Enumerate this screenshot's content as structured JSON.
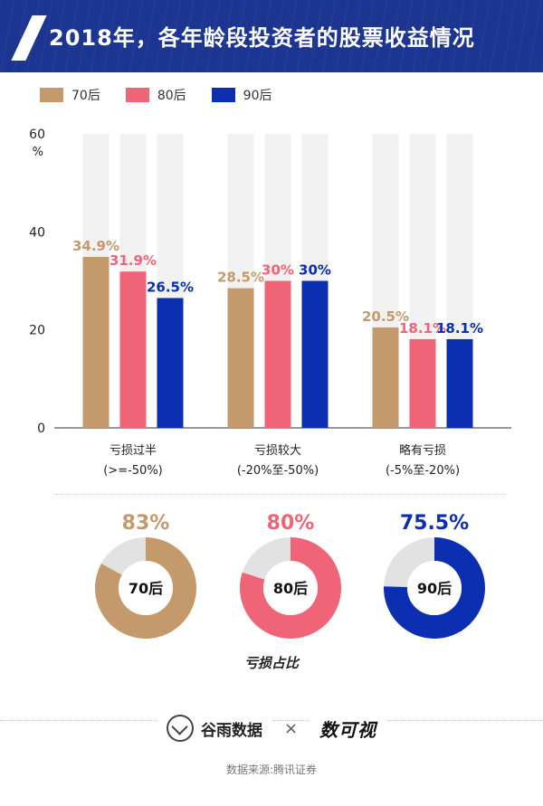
{
  "header": {
    "title": "2018年，各年龄段投资者的股票收益情况"
  },
  "legend": [
    {
      "label": "70后",
      "color": "#c49a6c"
    },
    {
      "label": "80后",
      "color": "#ef6577"
    },
    {
      "label": "90后",
      "color": "#0b2fb0"
    }
  ],
  "chart_data": [
    {
      "type": "bar",
      "categories": [
        [
          "亏损过半",
          "(>=-50%)"
        ],
        [
          "亏损较大",
          "(-20%至-50%)"
        ],
        [
          "略有亏损",
          "(-5%至-20%)"
        ]
      ],
      "series": [
        {
          "name": "70后",
          "color": "#c49a6c",
          "values": [
            34.9,
            28.5,
            20.5
          ],
          "labels": [
            "34.9%",
            "28.5%",
            "20.5%"
          ]
        },
        {
          "name": "80后",
          "color": "#ef6577",
          "values": [
            31.9,
            30,
            18.1
          ],
          "labels": [
            "31.9%",
            "30%",
            "18.1%"
          ]
        },
        {
          "name": "90后",
          "color": "#0b2fb0",
          "values": [
            26.5,
            30,
            18.1
          ],
          "labels": [
            "26.5%",
            "30%",
            "18.1%"
          ]
        }
      ],
      "ylim": [
        0,
        60
      ],
      "yticks": [
        "0",
        "20",
        "40",
        "60"
      ],
      "yunit": "%",
      "grid": false
    },
    {
      "type": "pie",
      "title": "亏损占比",
      "items": [
        {
          "name": "70后",
          "value": 83,
          "label": "83%",
          "color": "#c49a6c"
        },
        {
          "name": "80后",
          "value": 80,
          "label": "80%",
          "color": "#ef6577"
        },
        {
          "name": "90后",
          "value": 75.5,
          "label": "75.5%",
          "color": "#0b2fb0"
        }
      ],
      "remainder_color": "#e2e2e2"
    }
  ],
  "footer": {
    "brand_a": "谷雨数据",
    "brand_sep": "×",
    "brand_b": "数可视",
    "source": "数据来源:腾讯证券"
  }
}
